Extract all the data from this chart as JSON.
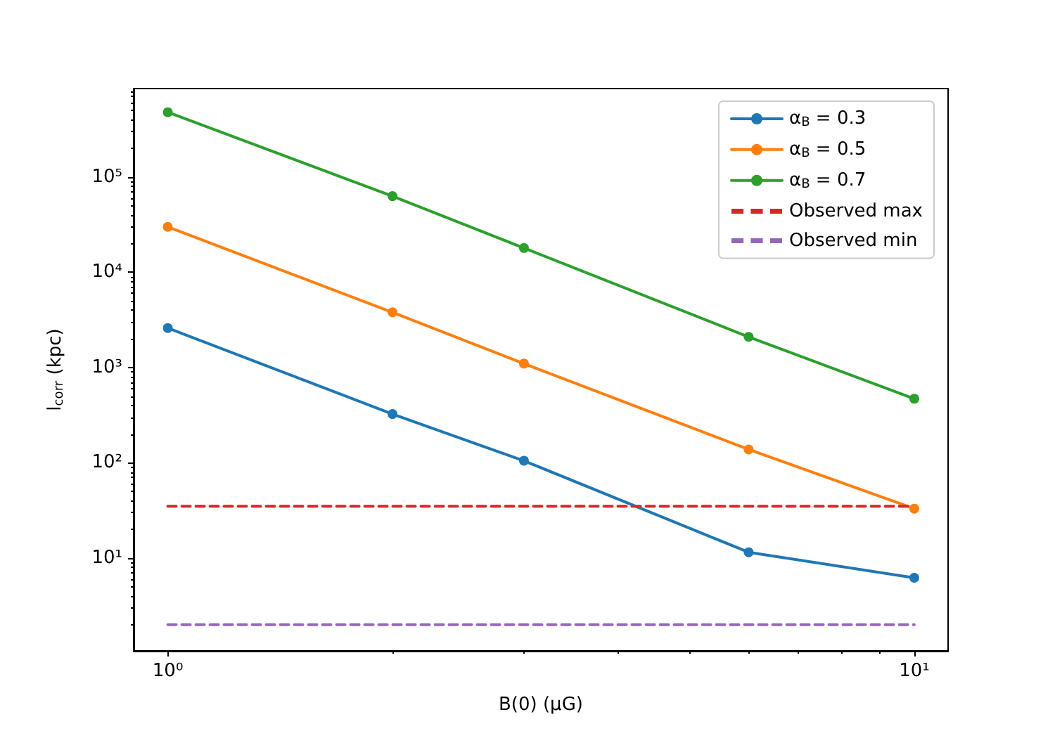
{
  "chart_data": {
    "type": "line",
    "xlabel": "B(0) (μG)",
    "ylabel": "l$_{corr}$ (kpc)",
    "x": [
      1,
      2,
      3,
      6,
      10
    ],
    "series": [
      {
        "name": "α$_{B}$ = 0.3",
        "color": "#1f77b4",
        "values": [
          2600,
          325,
          105,
          11.5,
          6.2
        ]
      },
      {
        "name": "α$_{B}$ = 0.5",
        "color": "#ff7f0e",
        "values": [
          30000,
          3800,
          1100,
          138,
          33
        ]
      },
      {
        "name": "α$_{B}$ = 0.7",
        "color": "#2ca02c",
        "values": [
          480000,
          63000,
          18000,
          2100,
          470
        ]
      },
      {
        "name": "Observed max",
        "color": "#d62728",
        "values": [
          35,
          35,
          35,
          35,
          35
        ],
        "line_style": "dashed",
        "marker": "none"
      },
      {
        "name": "Observed min",
        "color": "#9467bd",
        "values": [
          2,
          2,
          2,
          2,
          2
        ],
        "line_style": "dashed",
        "marker": "none"
      }
    ],
    "log": "xy",
    "xlim": [
      0.9,
      11.1
    ],
    "ylim": [
      1.06,
      850000
    ],
    "xticks": [
      {
        "value": 1,
        "label": "10⁰"
      },
      {
        "value": 10,
        "label": "10¹"
      }
    ],
    "yticks": [
      {
        "value": 10,
        "label": "10¹"
      },
      {
        "value": 100,
        "label": "10²"
      },
      {
        "value": 1000,
        "label": "10³"
      },
      {
        "value": 10000,
        "label": "10⁴"
      },
      {
        "value": 100000,
        "label": "10⁵"
      }
    ],
    "marker": "circle",
    "line_style": "solid",
    "legend": "top right",
    "grid": false
  }
}
